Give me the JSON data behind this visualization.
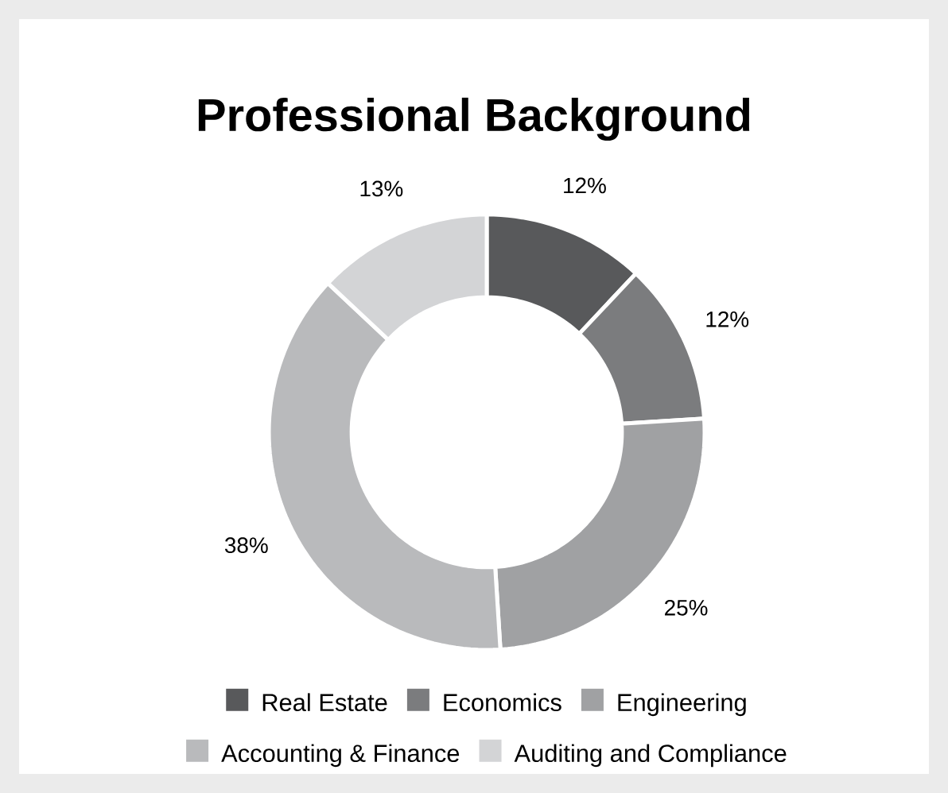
{
  "chart_data": {
    "type": "donut",
    "title": "Professional Background",
    "categories": [
      "Real Estate",
      "Economics",
      "Engineering",
      "Accounting & Finance",
      "Auditing and Compliance"
    ],
    "values": [
      12,
      12,
      25,
      38,
      13
    ],
    "colors": [
      "#58595b",
      "#7b7c7e",
      "#a0a1a3",
      "#b9babc",
      "#d3d4d6"
    ],
    "value_labels": [
      "12%",
      "12%",
      "25%",
      "38%",
      "13%"
    ],
    "legend": "bottom"
  }
}
